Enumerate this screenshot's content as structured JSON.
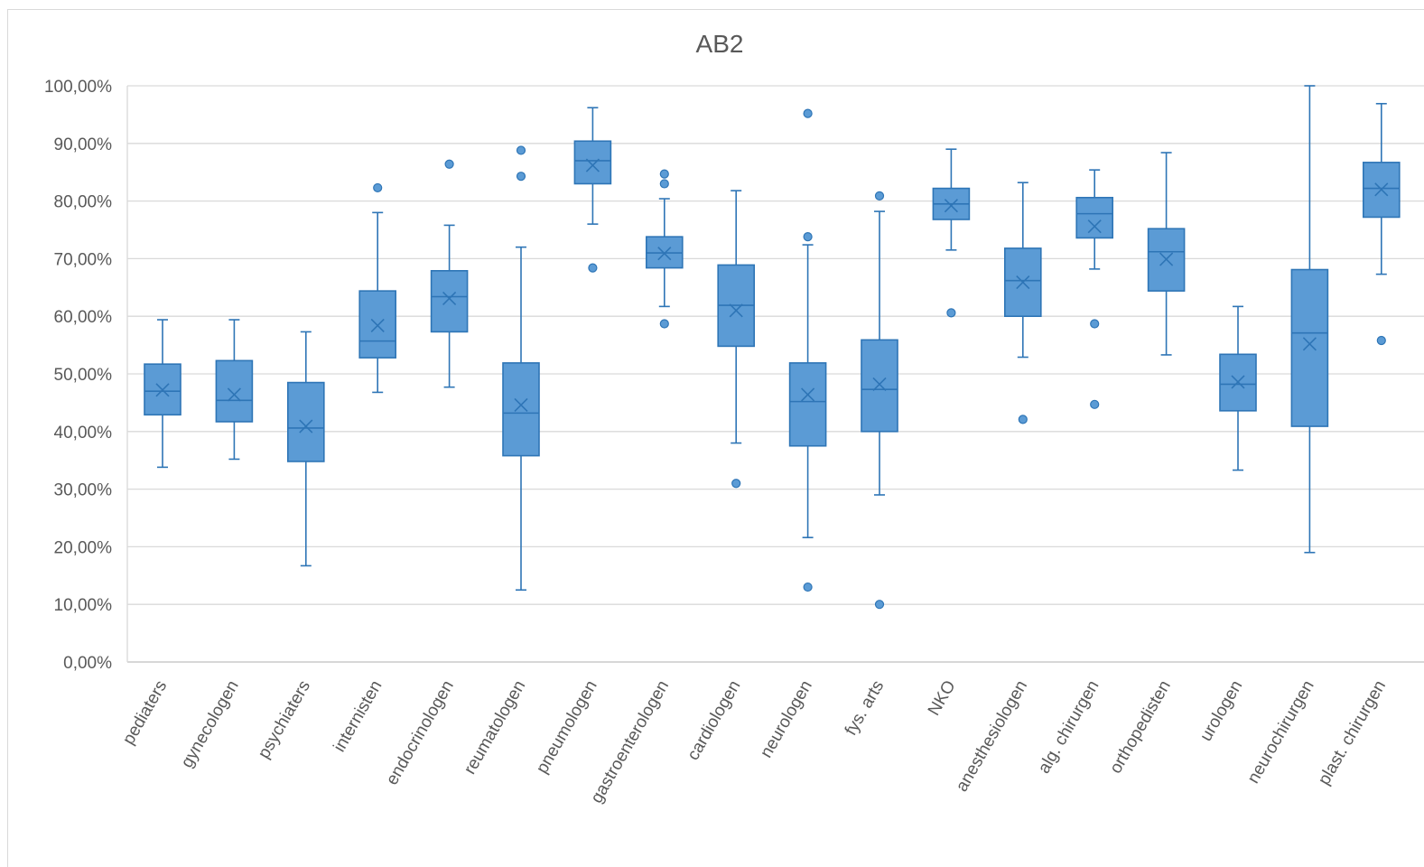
{
  "chart_data": {
    "type": "boxplot",
    "title": "AB2",
    "xlabel": "",
    "ylabel": "",
    "ylim": [
      0,
      100
    ],
    "y_ticks": [
      "0,00%",
      "10,00%",
      "20,00%",
      "30,00%",
      "40,00%",
      "50,00%",
      "60,00%",
      "70,00%",
      "80,00%",
      "90,00%",
      "100,00%"
    ],
    "grid": true,
    "legend": "none",
    "color": "#5b9bd5",
    "edge_color": "#2e75b6",
    "categories": [
      "pediaters",
      "gynecologen",
      "psychiaters",
      "internisten",
      "endocrinologen",
      "reumatologen",
      "pneumologen",
      "gastroenterologen",
      "cardiologen",
      "neurologen",
      "fys. arts",
      "NKO",
      "anesthesiologen",
      "alg. chirurgen",
      "orthopedisten",
      "urologen",
      "neurochirurgen",
      "plast. chirurgen"
    ],
    "boxes": [
      {
        "min": 33.8,
        "q1": 42.9,
        "median": 47.0,
        "q3": 51.7,
        "max": 59.4,
        "mean": 47.2,
        "outliers": []
      },
      {
        "min": 35.2,
        "q1": 41.7,
        "median": 45.4,
        "q3": 52.3,
        "max": 59.4,
        "mean": 46.4,
        "outliers": []
      },
      {
        "min": 16.7,
        "q1": 34.8,
        "median": 40.6,
        "q3": 48.5,
        "max": 57.3,
        "mean": 40.9,
        "outliers": []
      },
      {
        "min": 46.8,
        "q1": 52.8,
        "median": 55.7,
        "q3": 64.4,
        "max": 78.0,
        "mean": 58.4,
        "outliers": [
          82.3
        ]
      },
      {
        "min": 47.7,
        "q1": 57.3,
        "median": 63.4,
        "q3": 67.9,
        "max": 75.8,
        "mean": 63.1,
        "outliers": [
          86.4
        ]
      },
      {
        "min": 12.5,
        "q1": 35.8,
        "median": 43.2,
        "q3": 51.9,
        "max": 72.0,
        "mean": 44.6,
        "outliers": [
          84.3,
          88.8
        ]
      },
      {
        "min": 76.0,
        "q1": 83.0,
        "median": 87.0,
        "q3": 90.4,
        "max": 96.2,
        "mean": 86.2,
        "outliers": [
          68.4
        ]
      },
      {
        "min": 61.7,
        "q1": 68.4,
        "median": 71.0,
        "q3": 73.8,
        "max": 80.4,
        "mean": 70.9,
        "outliers": [
          58.7,
          83.0,
          84.7
        ]
      },
      {
        "min": 38.0,
        "q1": 54.8,
        "median": 61.9,
        "q3": 68.9,
        "max": 81.8,
        "mean": 61.0,
        "outliers": [
          31.0
        ]
      },
      {
        "min": 21.6,
        "q1": 37.5,
        "median": 45.2,
        "q3": 51.9,
        "max": 72.4,
        "mean": 46.4,
        "outliers": [
          13.0,
          73.8,
          95.2
        ]
      },
      {
        "min": 29.0,
        "q1": 40.0,
        "median": 47.3,
        "q3": 55.9,
        "max": 78.2,
        "mean": 48.2,
        "outliers": [
          10.0,
          80.9
        ]
      },
      {
        "min": 71.5,
        "q1": 76.8,
        "median": 79.5,
        "q3": 82.2,
        "max": 89.0,
        "mean": 79.2,
        "outliers": [
          60.6
        ]
      },
      {
        "min": 52.9,
        "q1": 60.0,
        "median": 66.2,
        "q3": 71.8,
        "max": 83.2,
        "mean": 65.9,
        "outliers": [
          42.1
        ]
      },
      {
        "min": 68.2,
        "q1": 73.6,
        "median": 77.8,
        "q3": 80.6,
        "max": 85.4,
        "mean": 75.6,
        "outliers": [
          44.7,
          58.7
        ]
      },
      {
        "min": 53.3,
        "q1": 64.4,
        "median": 71.2,
        "q3": 75.2,
        "max": 88.4,
        "mean": 69.9,
        "outliers": []
      },
      {
        "min": 33.3,
        "q1": 43.6,
        "median": 48.2,
        "q3": 53.4,
        "max": 61.7,
        "mean": 48.6,
        "outliers": []
      },
      {
        "min": 19.0,
        "q1": 40.9,
        "median": 57.1,
        "q3": 68.1,
        "max": 100.0,
        "mean": 55.2,
        "outliers": []
      },
      {
        "min": 67.3,
        "q1": 77.2,
        "median": 82.2,
        "q3": 86.7,
        "max": 96.9,
        "mean": 82.0,
        "outliers": [
          55.8
        ]
      }
    ]
  }
}
